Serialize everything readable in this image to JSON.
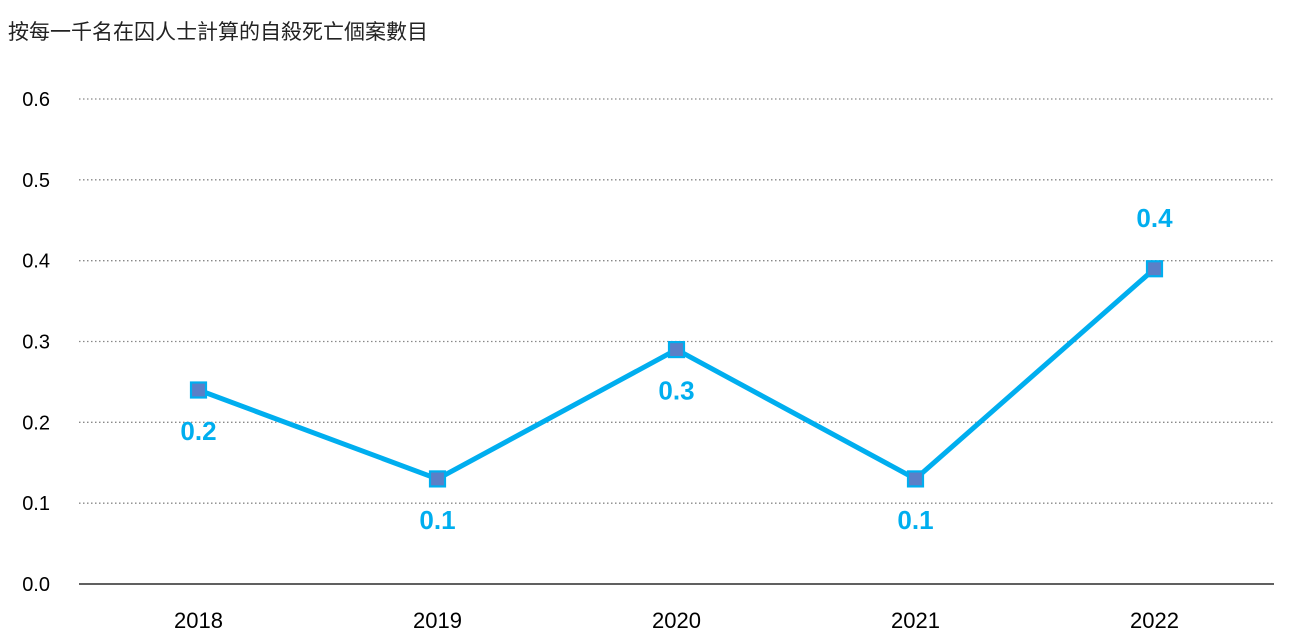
{
  "chart_data": {
    "type": "line",
    "title": "按每一千名在囚人士計算的自殺死亡個案數目",
    "xlabel": "",
    "ylabel": "",
    "categories": [
      "2018",
      "2019",
      "2020",
      "2021",
      "2022"
    ],
    "series": [
      {
        "values": [
          0.24,
          0.13,
          0.29,
          0.13,
          0.39
        ],
        "data_labels": [
          "0.2",
          "0.1",
          "0.3",
          "0.1",
          "0.4"
        ],
        "label_positions": [
          "below",
          "below",
          "below",
          "below",
          "above"
        ],
        "color": "#00AEEF",
        "marker_color": "#5B7FC7",
        "marker": "square"
      }
    ],
    "ylim": [
      0,
      0.6
    ],
    "y_ticks": [
      "0.0",
      "0.1",
      "0.2",
      "0.3",
      "0.4",
      "0.5",
      "0.6"
    ],
    "grid": true,
    "grid_style": "dotted",
    "legend": "none"
  }
}
